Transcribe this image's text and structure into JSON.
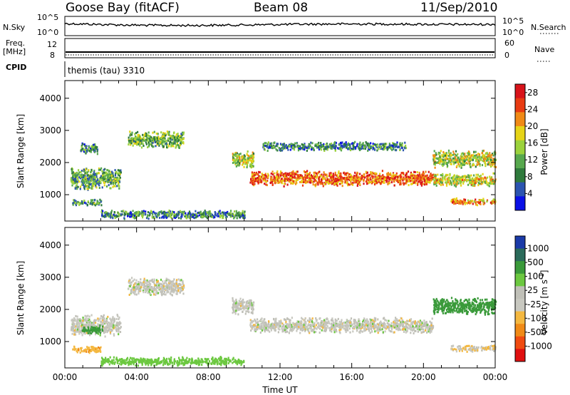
{
  "header": {
    "station": "Goose Bay (fitACF)",
    "beam": "Beam 08",
    "date": "11/Sep/2010"
  },
  "top_panels": {
    "nsky_label": "N.Sky",
    "nsky_tick_hi": "10^5",
    "nsky_tick_lo": "10^0",
    "nsearch_label": "N.Search",
    "nsearch_tick_hi": "10^5",
    "nsearch_tick_lo": "10^0",
    "freq_label_1": "Freq.",
    "freq_label_2": "[MHz]",
    "freq_tick_hi": "12",
    "freq_tick_lo": "8",
    "nave_label": "Nave",
    "nave_tick_hi": "60",
    "nave_tick_lo": "0",
    "cpid_label": "CPID",
    "cpid_value": "themis (tau) 3310"
  },
  "colors": {
    "power": [
      "#0a10e6",
      "#2b54b0",
      "#2f7a3c",
      "#57a84e",
      "#9bd23c",
      "#e6d417",
      "#f08a16",
      "#e83b12",
      "#d8131a"
    ],
    "velocity": [
      "#e01010",
      "#f04b10",
      "#f08a16",
      "#f4b840",
      "#c8c8c0",
      "#c0c0b8",
      "#6cc840",
      "#3a9a3a",
      "#2a6a5a",
      "#1a3aa8"
    ]
  },
  "chart_data": [
    {
      "type": "heatmap",
      "title": "",
      "ylabel": "Slant Range [km]",
      "xlabel": "",
      "xlim": [
        "00:00",
        "24:00"
      ],
      "ylim": [
        180,
        4550
      ],
      "xticks": [
        "00:00",
        "04:00",
        "08:00",
        "12:00",
        "16:00",
        "20:00",
        "00:00"
      ],
      "yticks": [
        "1000",
        "2000",
        "3000",
        "4000"
      ],
      "colorbar": {
        "label": "Power [dB]",
        "ticks": [
          "4",
          "8",
          "12",
          "16",
          "20",
          "24",
          "28"
        ],
        "range": [
          0,
          30
        ]
      },
      "echo_regions": [
        {
          "t_start": 0.3,
          "t_end": 3.1,
          "range_center": 1500,
          "range_width": 500,
          "value": 11
        },
        {
          "t_start": 0.4,
          "t_end": 2.0,
          "range_center": 750,
          "range_width": 150,
          "value": 10
        },
        {
          "t_start": 0.8,
          "t_end": 1.8,
          "range_center": 2420,
          "range_width": 250,
          "value": 9
        },
        {
          "t_start": 3.5,
          "t_end": 6.6,
          "range_center": 2700,
          "range_width": 400,
          "value": 13
        },
        {
          "t_start": 2.0,
          "t_end": 10.0,
          "range_center": 380,
          "range_width": 200,
          "value": 9
        },
        {
          "t_start": 9.3,
          "t_end": 10.5,
          "range_center": 2100,
          "range_width": 400,
          "value": 16
        },
        {
          "t_start": 10.3,
          "t_end": 20.5,
          "range_center": 1500,
          "range_width": 350,
          "value": 24
        },
        {
          "t_start": 11.0,
          "t_end": 19.0,
          "range_center": 2500,
          "range_width": 200,
          "value": 8
        },
        {
          "t_start": 20.5,
          "t_end": 24.0,
          "range_center": 2100,
          "range_width": 400,
          "value": 16
        },
        {
          "t_start": 20.5,
          "t_end": 24.0,
          "range_center": 1450,
          "range_width": 300,
          "value": 17
        },
        {
          "t_start": 21.5,
          "t_end": 24.0,
          "range_center": 780,
          "range_width": 150,
          "value": 22
        }
      ]
    },
    {
      "type": "heatmap",
      "title": "",
      "ylabel": "Slant Range [km]",
      "xlabel": "Time UT",
      "xlim": [
        "00:00",
        "24:00"
      ],
      "ylim": [
        180,
        4550
      ],
      "xticks": [
        "00:00",
        "04:00",
        "08:00",
        "12:00",
        "16:00",
        "20:00",
        "00:00"
      ],
      "yticks": [
        "1000",
        "2000",
        "3000",
        "4000"
      ],
      "colorbar": {
        "label": "Velocity [m s^-1]",
        "ticks": [
          "1000",
          "500",
          "100",
          "25",
          "-25",
          "-100",
          "-500",
          "-1000"
        ]
      },
      "echo_regions": [
        {
          "t_start": 0.3,
          "t_end": 3.1,
          "range_center": 1500,
          "range_width": 500,
          "value": 0
        },
        {
          "t_start": 0.9,
          "t_end": 2.1,
          "range_center": 1350,
          "range_width": 200,
          "value": 250
        },
        {
          "t_start": 0.4,
          "t_end": 2.0,
          "range_center": 750,
          "range_width": 150,
          "value": -80
        },
        {
          "t_start": 3.5,
          "t_end": 6.6,
          "range_center": 2700,
          "range_width": 400,
          "value": 0
        },
        {
          "t_start": 2.0,
          "t_end": 10.0,
          "range_center": 380,
          "range_width": 200,
          "value": 60
        },
        {
          "t_start": 9.3,
          "t_end": 10.5,
          "range_center": 2100,
          "range_width": 400,
          "value": 0
        },
        {
          "t_start": 10.3,
          "t_end": 20.5,
          "range_center": 1500,
          "range_width": 350,
          "value": 0
        },
        {
          "t_start": 20.5,
          "t_end": 24.0,
          "range_center": 2100,
          "range_width": 400,
          "value": 180
        },
        {
          "t_start": 21.5,
          "t_end": 24.0,
          "range_center": 780,
          "range_width": 150,
          "value": -20
        }
      ]
    }
  ]
}
